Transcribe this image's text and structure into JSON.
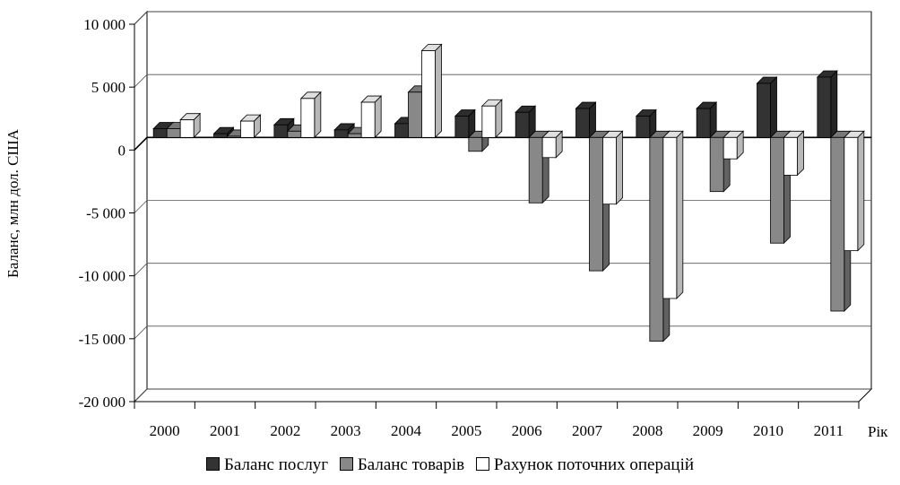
{
  "chart_data": {
    "type": "bar",
    "ylabel": "Баланс, млн дол. США",
    "xlabel": "Рік",
    "ylim": [
      -20000,
      10000
    ],
    "yticks": [
      10000,
      5000,
      0,
      -5000,
      -10000,
      -15000,
      -20000
    ],
    "ytick_labels": [
      "10 000",
      "5 000",
      "0",
      "-5 000",
      "-10 000",
      "-15 000",
      "-20 000"
    ],
    "categories": [
      "2000",
      "2001",
      "2002",
      "2003",
      "2004",
      "2005",
      "2006",
      "2007",
      "2008",
      "2009",
      "2010",
      "2011"
    ],
    "grid": true,
    "legend_position": "bottom",
    "series": [
      {
        "name": "Баланс послуг",
        "color": "#333333",
        "values": [
          700,
          300,
          1000,
          600,
          1100,
          1700,
          2000,
          2300,
          1700,
          2300,
          4300,
          4800
        ]
      },
      {
        "name": "Баланс товарів",
        "color": "#888888",
        "values": [
          700,
          100,
          500,
          300,
          3600,
          -1100,
          -5200,
          -10600,
          -16200,
          -4300,
          -8400,
          -13800
        ]
      },
      {
        "name": "Рахунок поточних операцій",
        "color": "#ffffff",
        "values": [
          1400,
          1300,
          3100,
          2800,
          6900,
          2500,
          -1600,
          -5300,
          -12800,
          -1700,
          -3000,
          -9000
        ]
      }
    ]
  }
}
